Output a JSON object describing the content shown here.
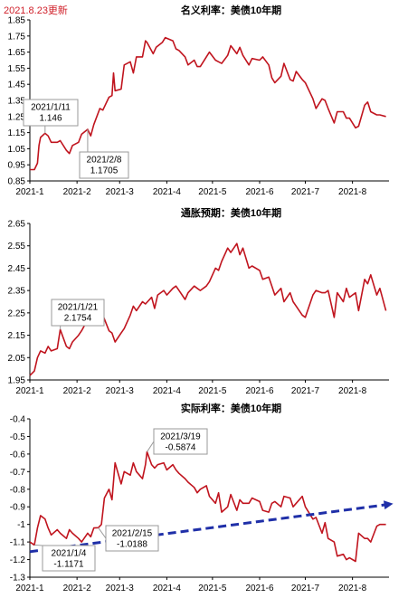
{
  "update_note": "2021.8.23更新",
  "colors": {
    "series": "#c0141e",
    "trend": "#1f2fa8",
    "axis": "#000000",
    "grid": "#e6e6e6",
    "callout_border": "#9a9a9a",
    "update_note": "#d0202a"
  },
  "chart_data": [
    {
      "type": "line",
      "title": "名义利率：美债10年期",
      "xlabel": "",
      "ylabel": "",
      "x_ticks": [
        "2021-1",
        "2021-2",
        "2021-3",
        "2021-4",
        "2021-5",
        "2021-6",
        "2021-7",
        "2021-8"
      ],
      "y_ticks": [
        "0.85",
        "0.95",
        "1.05",
        "1.15",
        "1.25",
        "1.35",
        "1.45",
        "1.55",
        "1.65",
        "1.75",
        "1.85"
      ],
      "ylim": [
        0.85,
        1.85
      ],
      "grid": false,
      "series": [
        {
          "x": [
            "2021-01-01",
            "2021-01-04",
            "2021-01-06",
            "2021-01-07",
            "2021-01-08",
            "2021-01-11",
            "2021-01-13",
            "2021-01-15",
            "2021-01-19",
            "2021-01-21",
            "2021-01-25",
            "2021-01-27",
            "2021-01-29",
            "2021-02-02",
            "2021-02-04",
            "2021-02-08",
            "2021-02-10",
            "2021-02-12",
            "2021-02-16",
            "2021-02-18",
            "2021-02-22",
            "2021-02-24",
            "2021-02-25",
            "2021-02-26",
            "2021-03-02",
            "2021-03-04",
            "2021-03-08",
            "2021-03-10",
            "2021-03-12",
            "2021-03-16",
            "2021-03-18",
            "2021-03-19",
            "2021-03-23",
            "2021-03-25",
            "2021-03-29",
            "2021-03-31",
            "2021-04-05",
            "2021-04-07",
            "2021-04-09",
            "2021-04-13",
            "2021-04-15",
            "2021-04-19",
            "2021-04-21",
            "2021-04-23",
            "2021-04-27",
            "2021-04-29",
            "2021-05-03",
            "2021-05-05",
            "2021-05-07",
            "2021-05-11",
            "2021-05-13",
            "2021-05-17",
            "2021-05-19",
            "2021-05-21",
            "2021-05-25",
            "2021-05-27",
            "2021-06-01",
            "2021-06-03",
            "2021-06-07",
            "2021-06-09",
            "2021-06-11",
            "2021-06-15",
            "2021-06-17",
            "2021-06-21",
            "2021-06-23",
            "2021-06-25",
            "2021-06-29",
            "2021-07-01",
            "2021-07-06",
            "2021-07-08",
            "2021-07-12",
            "2021-07-14",
            "2021-07-16",
            "2021-07-20",
            "2021-07-22",
            "2021-07-26",
            "2021-07-28",
            "2021-07-30",
            "2021-08-03",
            "2021-08-05",
            "2021-08-09",
            "2021-08-11",
            "2021-08-13",
            "2021-08-17",
            "2021-08-19",
            "2021-08-23"
          ],
          "values": [
            0.92,
            0.92,
            0.96,
            1.07,
            1.12,
            1.146,
            1.13,
            1.09,
            1.09,
            1.1,
            1.04,
            1.02,
            1.07,
            1.09,
            1.14,
            1.17,
            1.13,
            1.2,
            1.3,
            1.29,
            1.37,
            1.38,
            1.52,
            1.41,
            1.42,
            1.57,
            1.59,
            1.52,
            1.62,
            1.62,
            1.72,
            1.71,
            1.64,
            1.68,
            1.71,
            1.74,
            1.72,
            1.67,
            1.66,
            1.62,
            1.57,
            1.6,
            1.56,
            1.56,
            1.62,
            1.65,
            1.6,
            1.59,
            1.58,
            1.63,
            1.69,
            1.64,
            1.68,
            1.63,
            1.57,
            1.61,
            1.6,
            1.62,
            1.57,
            1.49,
            1.46,
            1.5,
            1.58,
            1.48,
            1.47,
            1.53,
            1.48,
            1.46,
            1.36,
            1.3,
            1.36,
            1.35,
            1.3,
            1.21,
            1.28,
            1.28,
            1.24,
            1.24,
            1.18,
            1.19,
            1.32,
            1.34,
            1.28,
            1.26,
            1.26,
            1.25
          ]
        }
      ],
      "callouts": [
        {
          "x": "2021-01-11",
          "y": 1.146,
          "date": "2021/1/11",
          "value": "1.146"
        },
        {
          "x": "2021-02-08",
          "y": 1.1705,
          "date": "2021/2/8",
          "value": "1.1705"
        }
      ]
    },
    {
      "type": "line",
      "title": "通胀预期：美债10年期",
      "xlabel": "",
      "ylabel": "",
      "x_ticks": [
        "2021-1",
        "2021-2",
        "2021-3",
        "2021-4",
        "2021-5",
        "2021-6",
        "2021-7",
        "2021-8"
      ],
      "y_ticks": [
        "1.95",
        "2.05",
        "2.15",
        "2.25",
        "2.35",
        "2.45",
        "2.55",
        "2.65"
      ],
      "ylim": [
        1.95,
        2.65
      ],
      "grid": false,
      "series": [
        {
          "x": [
            "2021-01-01",
            "2021-01-04",
            "2021-01-06",
            "2021-01-08",
            "2021-01-11",
            "2021-01-13",
            "2021-01-15",
            "2021-01-19",
            "2021-01-21",
            "2021-01-25",
            "2021-01-27",
            "2021-01-29",
            "2021-02-02",
            "2021-02-04",
            "2021-02-08",
            "2021-02-10",
            "2021-02-12",
            "2021-02-16",
            "2021-02-18",
            "2021-02-22",
            "2021-02-24",
            "2021-02-26",
            "2021-03-02",
            "2021-03-04",
            "2021-03-08",
            "2021-03-10",
            "2021-03-12",
            "2021-03-16",
            "2021-03-18",
            "2021-03-22",
            "2021-03-24",
            "2021-03-26",
            "2021-03-30",
            "2021-04-01",
            "2021-04-05",
            "2021-04-07",
            "2021-04-09",
            "2021-04-13",
            "2021-04-15",
            "2021-04-19",
            "2021-04-21",
            "2021-04-23",
            "2021-04-27",
            "2021-04-29",
            "2021-05-03",
            "2021-05-05",
            "2021-05-07",
            "2021-05-11",
            "2021-05-13",
            "2021-05-17",
            "2021-05-19",
            "2021-05-21",
            "2021-05-25",
            "2021-05-27",
            "2021-06-01",
            "2021-06-03",
            "2021-06-07",
            "2021-06-09",
            "2021-06-11",
            "2021-06-15",
            "2021-06-17",
            "2021-06-21",
            "2021-06-23",
            "2021-06-25",
            "2021-06-29",
            "2021-07-01",
            "2021-07-06",
            "2021-07-08",
            "2021-07-12",
            "2021-07-14",
            "2021-07-16",
            "2021-07-20",
            "2021-07-22",
            "2021-07-26",
            "2021-07-28",
            "2021-07-30",
            "2021-08-03",
            "2021-08-05",
            "2021-08-09",
            "2021-08-11",
            "2021-08-13",
            "2021-08-17",
            "2021-08-19",
            "2021-08-23"
          ],
          "values": [
            1.97,
            1.99,
            2.05,
            2.08,
            2.07,
            2.1,
            2.08,
            2.09,
            2.1754,
            2.1,
            2.09,
            2.12,
            2.15,
            2.17,
            2.22,
            2.2,
            2.21,
            2.22,
            2.24,
            2.17,
            2.16,
            2.12,
            2.16,
            2.18,
            2.24,
            2.28,
            2.26,
            2.3,
            2.29,
            2.32,
            2.27,
            2.33,
            2.35,
            2.33,
            2.36,
            2.37,
            2.35,
            2.31,
            2.34,
            2.37,
            2.36,
            2.35,
            2.37,
            2.39,
            2.45,
            2.44,
            2.48,
            2.54,
            2.52,
            2.56,
            2.51,
            2.54,
            2.45,
            2.46,
            2.44,
            2.4,
            2.41,
            2.37,
            2.33,
            2.36,
            2.3,
            2.34,
            2.3,
            2.28,
            2.24,
            2.23,
            2.33,
            2.35,
            2.34,
            2.34,
            2.35,
            2.23,
            2.34,
            2.3,
            2.36,
            2.32,
            2.34,
            2.26,
            2.4,
            2.38,
            2.42,
            2.33,
            2.36,
            2.26
          ]
        }
      ],
      "callouts": [
        {
          "x": "2021-01-21",
          "y": 2.1754,
          "date": "2021/1/21",
          "value": "2.1754"
        }
      ]
    },
    {
      "type": "line",
      "title": "实际利率：美债10年期",
      "xlabel": "",
      "ylabel": "",
      "x_ticks": [
        "2021-1",
        "2021-2",
        "2021-3",
        "2021-4",
        "2021-5",
        "2021-6",
        "2021-7",
        "2021-8"
      ],
      "y_ticks": [
        "-1.3",
        "-1.2",
        "-1.1",
        "-1",
        "-0.9",
        "-0.8",
        "-0.7",
        "-0.6",
        "-0.5",
        "-0.4"
      ],
      "ylim": [
        -1.3,
        -0.4
      ],
      "grid": false,
      "series": [
        {
          "x": [
            "2021-01-01",
            "2021-01-04",
            "2021-01-06",
            "2021-01-08",
            "2021-01-11",
            "2021-01-13",
            "2021-01-15",
            "2021-01-19",
            "2021-01-21",
            "2021-01-25",
            "2021-01-27",
            "2021-01-29",
            "2021-02-02",
            "2021-02-04",
            "2021-02-08",
            "2021-02-10",
            "2021-02-12",
            "2021-02-15",
            "2021-02-17",
            "2021-02-19",
            "2021-02-22",
            "2021-02-24",
            "2021-02-26",
            "2021-03-02",
            "2021-03-04",
            "2021-03-08",
            "2021-03-10",
            "2021-03-12",
            "2021-03-16",
            "2021-03-18",
            "2021-03-19",
            "2021-03-22",
            "2021-03-24",
            "2021-03-26",
            "2021-03-30",
            "2021-04-01",
            "2021-04-05",
            "2021-04-07",
            "2021-04-09",
            "2021-04-13",
            "2021-04-15",
            "2021-04-19",
            "2021-04-21",
            "2021-04-23",
            "2021-04-27",
            "2021-04-29",
            "2021-05-03",
            "2021-05-05",
            "2021-05-07",
            "2021-05-11",
            "2021-05-13",
            "2021-05-17",
            "2021-05-19",
            "2021-05-21",
            "2021-05-25",
            "2021-05-27",
            "2021-06-01",
            "2021-06-03",
            "2021-06-07",
            "2021-06-09",
            "2021-06-11",
            "2021-06-15",
            "2021-06-17",
            "2021-06-21",
            "2021-06-23",
            "2021-06-25",
            "2021-06-29",
            "2021-07-01",
            "2021-07-06",
            "2021-07-08",
            "2021-07-12",
            "2021-07-14",
            "2021-07-16",
            "2021-07-20",
            "2021-07-22",
            "2021-07-26",
            "2021-07-28",
            "2021-07-30",
            "2021-08-03",
            "2021-08-05",
            "2021-08-09",
            "2021-08-11",
            "2021-08-13",
            "2021-08-17",
            "2021-08-19",
            "2021-08-23"
          ],
          "values": [
            -1.1,
            -1.1171,
            -1.02,
            -0.95,
            -0.97,
            -1.02,
            -1.06,
            -1.03,
            -1.05,
            -1.08,
            -1.03,
            -1.05,
            -1.08,
            -1.1,
            -1.05,
            -1.07,
            -1.02,
            -1.0188,
            -1.0,
            -0.85,
            -0.8,
            -0.86,
            -0.65,
            -0.77,
            -0.7,
            -0.72,
            -0.65,
            -0.7,
            -0.74,
            -0.66,
            -0.5874,
            -0.66,
            -0.68,
            -0.66,
            -0.65,
            -0.69,
            -0.66,
            -0.69,
            -0.71,
            -0.74,
            -0.76,
            -0.79,
            -0.82,
            -0.8,
            -0.78,
            -0.84,
            -0.88,
            -0.82,
            -0.93,
            -0.9,
            -0.83,
            -0.92,
            -0.86,
            -0.88,
            -0.88,
            -0.85,
            -0.87,
            -0.92,
            -0.93,
            -0.88,
            -0.87,
            -0.9,
            -0.84,
            -0.85,
            -0.9,
            -0.88,
            -0.84,
            -0.9,
            -0.97,
            -0.96,
            -1.05,
            -0.99,
            -1.08,
            -1.1,
            -1.18,
            -1.17,
            -1.2,
            -1.19,
            -1.21,
            -1.05,
            -1.08,
            -1.08,
            -1.1,
            -1.01,
            -1.0,
            -1.0
          ]
        }
      ],
      "trendline": {
        "x_start": "2021-01-01",
        "y_start": -1.155,
        "x_end": "2021-08-23",
        "y_end": -0.888
      },
      "callouts": [
        {
          "x": "2021-03-19",
          "y": -0.5874,
          "date": "2021/3/19",
          "value": "-0.5874"
        },
        {
          "x": "2021-01-04",
          "y": -1.1171,
          "date": "2021/1/4",
          "value": "-1.1171"
        },
        {
          "x": "2021-02-15",
          "y": -1.0188,
          "date": "2021/2/15",
          "value": "-1.0188"
        }
      ]
    }
  ]
}
